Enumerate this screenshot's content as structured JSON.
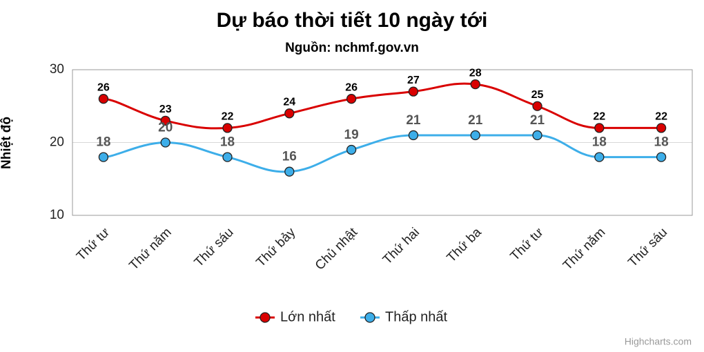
{
  "chart_data": {
    "type": "line",
    "title": "Dự báo thời tiết 10 ngày tới",
    "subtitle": "Nguồn: nchmf.gov.vn",
    "y_axis_title": "Nhiệt độ",
    "credits": "Highcharts.com",
    "categories": [
      "Thứ tư",
      "Thứ năm",
      "Thứ sáu",
      "Thứ bảy",
      "Chủ nhật",
      "Thứ hai",
      "Thứ ba",
      "Thứ tư",
      "Thứ năm",
      "Thứ sáu"
    ],
    "series": [
      {
        "name": "Lớn nhất",
        "color": "#d90000",
        "values": [
          26,
          23,
          22,
          24,
          26,
          27,
          28,
          25,
          22,
          22
        ]
      },
      {
        "name": "Thấp nhất",
        "color": "#3daee9",
        "values": [
          18,
          20,
          18,
          16,
          19,
          21,
          21,
          21,
          18,
          18
        ]
      }
    ],
    "ylim": [
      10,
      30
    ],
    "yticks": [
      10,
      20,
      30
    ],
    "grid": true,
    "smooth": true,
    "legend": "bottom"
  }
}
